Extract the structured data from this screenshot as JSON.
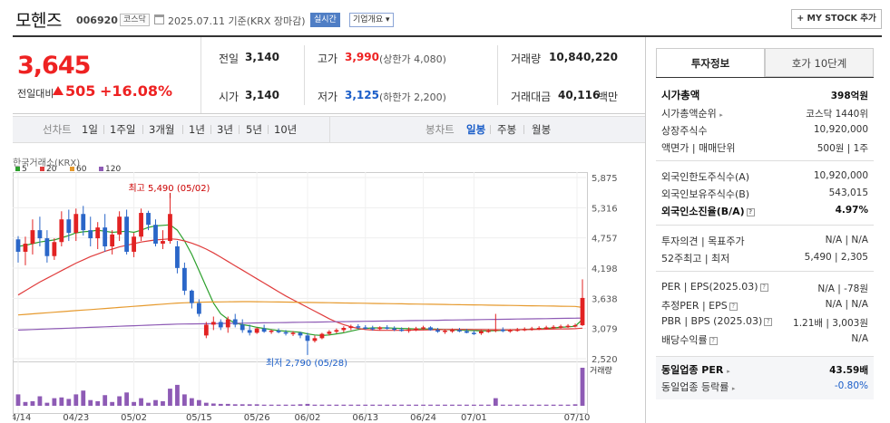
{
  "header": {
    "stock_name": "모헨즈",
    "stock_code": "006920",
    "market_tag": "코스닥",
    "as_of": "2025.07.11  기준(KRX 장마감)",
    "realtime_label": "실시간",
    "overview_label": "기업개요 ▾",
    "mystock_label": "+ MY STOCK 추가"
  },
  "price": {
    "current": "3,645",
    "change_label": "전일대비",
    "change_value": "505",
    "change_pct": "+16.08%"
  },
  "summary": {
    "prev_close_label": "전일",
    "prev_close": "3,140",
    "open_label": "시가",
    "open": "3,140",
    "high_label": "고가",
    "high": "3,990",
    "upper_limit": "(상한가 4,080)",
    "low_label": "저가",
    "low": "3,125",
    "lower_limit": "(하한가 2,200)",
    "volume_label": "거래량",
    "volume": "10,840,220",
    "amount_label": "거래대금",
    "amount": "40,116",
    "amount_unit": "백만"
  },
  "periods": {
    "line_label": "선차트",
    "line_items": [
      "1일",
      "1주일",
      "3개월",
      "1년",
      "3년",
      "5년",
      "10년"
    ],
    "candle_label": "봉차트",
    "candle_items": [
      "일봉",
      "주봉",
      "월봉"
    ],
    "active_candle": "일봉"
  },
  "chart_data": {
    "type": "candlestick",
    "source_label": "한국거래소(KRX)",
    "ma_legend": [
      {
        "name": "5",
        "color": "#2ca02c"
      },
      {
        "name": "20",
        "color": "#e03c3c"
      },
      {
        "name": "60",
        "color": "#e69a2e"
      },
      {
        "name": "120",
        "color": "#8e5bb5"
      }
    ],
    "y_ticks": [
      "5,875",
      "5,316",
      "4,757",
      "4,198",
      "3,638",
      "3,079",
      "2,520"
    ],
    "y_tick_values": [
      5875,
      5316,
      4757,
      4198,
      3638,
      3079,
      2520
    ],
    "ylim": [
      2520,
      5875
    ],
    "x_ticks": [
      "04/14",
      "04/23",
      "05/02",
      "05/15",
      "05/26",
      "06/02",
      "06/13",
      "06/24",
      "07/01",
      "07/10"
    ],
    "high_annotation": "최고 5,490 (05/02)",
    "low_annotation": "최저 2,790 (05/28)",
    "volume_label": "거래량",
    "up_color": "#e22222",
    "down_color": "#2a66c8",
    "candles": [
      [
        4730,
        4790,
        4300,
        4500
      ],
      [
        4500,
        4780,
        4250,
        4650
      ],
      [
        4650,
        5100,
        4450,
        4900
      ],
      [
        4900,
        5150,
        4600,
        4750
      ],
      [
        4750,
        4900,
        4300,
        4420
      ],
      [
        4420,
        4750,
        4350,
        4680
      ],
      [
        4680,
        5250,
        4600,
        5100
      ],
      [
        5100,
        5280,
        4700,
        4850
      ],
      [
        4850,
        5300,
        4700,
        5200
      ],
      [
        5200,
        5350,
        4800,
        4900
      ],
      [
        4900,
        5150,
        4600,
        4750
      ],
      [
        4750,
        5050,
        4550,
        4950
      ],
      [
        4950,
        5200,
        4500,
        4600
      ],
      [
        4600,
        4900,
        4450,
        4820
      ],
      [
        4820,
        5250,
        4700,
        5150
      ],
      [
        5150,
        5280,
        4450,
        4500
      ],
      [
        4500,
        4850,
        4400,
        4780
      ],
      [
        4780,
        5300,
        4700,
        5220
      ],
      [
        5220,
        5260,
        4900,
        5000
      ],
      [
        5000,
        5100,
        4600,
        4650
      ],
      [
        4650,
        4900,
        4550,
        4700
      ],
      [
        4700,
        5490,
        4650,
        5200
      ],
      [
        4600,
        4700,
        4100,
        4200
      ],
      [
        4200,
        4300,
        3700,
        3780
      ],
      [
        3780,
        3800,
        3450,
        3550
      ],
      [
        3550,
        3620,
        3300,
        3350
      ],
      [
        2950,
        3200,
        2900,
        3150
      ],
      [
        3150,
        3300,
        3050,
        3200
      ],
      [
        3200,
        3250,
        3050,
        3100
      ],
      [
        3100,
        3300,
        3000,
        3250
      ],
      [
        3250,
        3350,
        3100,
        3150
      ],
      [
        3150,
        3250,
        3000,
        3050
      ],
      [
        3050,
        3150,
        2950,
        3000
      ],
      [
        3000,
        3100,
        2980,
        3080
      ],
      [
        3080,
        3150,
        3000,
        3020
      ],
      [
        3020,
        3060,
        2980,
        3040
      ],
      [
        3040,
        3080,
        2990,
        3010
      ],
      [
        3010,
        3050,
        2950,
        2990
      ],
      [
        2990,
        3030,
        2940,
        3000
      ],
      [
        3000,
        3020,
        2900,
        2950
      ],
      [
        2950,
        3000,
        2790,
        2850
      ],
      [
        2850,
        2950,
        2820,
        2900
      ],
      [
        2900,
        3000,
        2880,
        2980
      ],
      [
        2980,
        3050,
        2950,
        3020
      ],
      [
        3020,
        3080,
        2990,
        3050
      ],
      [
        3050,
        3120,
        3010,
        3090
      ],
      [
        3090,
        3150,
        3050,
        3120
      ],
      [
        3120,
        3160,
        3070,
        3100
      ],
      [
        3100,
        3140,
        3060,
        3090
      ],
      [
        3090,
        3130,
        3040,
        3070
      ],
      [
        3070,
        3120,
        3040,
        3100
      ],
      [
        3100,
        3140,
        3060,
        3080
      ],
      [
        3080,
        3120,
        3030,
        3060
      ],
      [
        3060,
        3100,
        3020,
        3050
      ],
      [
        3050,
        3100,
        3000,
        3060
      ],
      [
        3060,
        3110,
        3030,
        3080
      ],
      [
        3080,
        3130,
        3050,
        3100
      ],
      [
        3100,
        3120,
        3040,
        3050
      ],
      [
        3050,
        3090,
        3000,
        3020
      ],
      [
        3020,
        3060,
        2980,
        3040
      ],
      [
        3040,
        3080,
        3000,
        3050
      ],
      [
        3050,
        3090,
        3010,
        3030
      ],
      [
        3030,
        3070,
        2990,
        3000
      ],
      [
        3000,
        3040,
        2960,
        2990
      ],
      [
        2990,
        3050,
        2960,
        3030
      ],
      [
        3030,
        3070,
        3000,
        3040
      ],
      [
        3040,
        3350,
        3010,
        3060
      ],
      [
        3060,
        3100,
        3010,
        3030
      ],
      [
        3030,
        3070,
        3000,
        3050
      ],
      [
        3050,
        3090,
        3020,
        3060
      ],
      [
        3060,
        3100,
        3030,
        3070
      ],
      [
        3070,
        3110,
        3040,
        3080
      ],
      [
        3080,
        3120,
        3050,
        3090
      ],
      [
        3090,
        3130,
        3060,
        3100
      ],
      [
        3100,
        3140,
        3070,
        3110
      ],
      [
        3110,
        3150,
        3080,
        3120
      ],
      [
        3120,
        3160,
        3090,
        3130
      ],
      [
        3130,
        3170,
        3100,
        3140
      ],
      [
        3140,
        3990,
        3125,
        3645
      ]
    ],
    "ma5": [
      4600,
      4620,
      4650,
      4680,
      4700,
      4720,
      4760,
      4800,
      4850,
      4870,
      4880,
      4900,
      4880,
      4860,
      4870,
      4880,
      4860,
      4900,
      4950,
      4980,
      4990,
      5000,
      4900,
      4700,
      4450,
      4150,
      3850,
      3550,
      3350,
      3250,
      3180,
      3150,
      3130,
      3100,
      3080,
      3060,
      3040,
      3030,
      3020,
      3010,
      2980,
      2960,
      2950,
      2960,
      2980,
      3000,
      3030,
      3060,
      3080,
      3090,
      3090,
      3090,
      3085,
      3080,
      3075,
      3070,
      3070,
      3070,
      3065,
      3060,
      3055,
      3050,
      3045,
      3040,
      3035,
      3035,
      3040,
      3045,
      3050,
      3055,
      3060,
      3065,
      3070,
      3080,
      3090,
      3100,
      3110,
      3120,
      3250
    ],
    "ma20": [
      3700,
      3780,
      3860,
      3940,
      4010,
      4080,
      4150,
      4220,
      4290,
      4350,
      4410,
      4460,
      4510,
      4550,
      4590,
      4620,
      4650,
      4680,
      4700,
      4720,
      4730,
      4740,
      4730,
      4700,
      4660,
      4610,
      4550,
      4480,
      4400,
      4320,
      4240,
      4160,
      4080,
      4000,
      3920,
      3840,
      3760,
      3680,
      3610,
      3540,
      3470,
      3400,
      3330,
      3260,
      3200,
      3150,
      3110,
      3080,
      3060,
      3050,
      3045,
      3045,
      3045,
      3045,
      3048,
      3050,
      3052,
      3055,
      3058,
      3060,
      3062,
      3062,
      3062,
      3060,
      3058,
      3056,
      3055,
      3055,
      3055,
      3056,
      3058,
      3060,
      3062,
      3065,
      3068,
      3070,
      3072,
      3075,
      3085
    ],
    "ma60": [
      3330,
      3340,
      3350,
      3360,
      3370,
      3380,
      3390,
      3400,
      3410,
      3420,
      3430,
      3440,
      3450,
      3460,
      3470,
      3480,
      3490,
      3500,
      3510,
      3520,
      3530,
      3540,
      3550,
      3555,
      3560,
      3565,
      3568,
      3570,
      3572,
      3574,
      3575,
      3576,
      3576,
      3575,
      3574,
      3572,
      3570,
      3568,
      3566,
      3564,
      3562,
      3560,
      3558,
      3556,
      3554,
      3552,
      3550,
      3548,
      3546,
      3544,
      3542,
      3540,
      3538,
      3536,
      3534,
      3532,
      3530,
      3528,
      3526,
      3524,
      3522,
      3520,
      3518,
      3516,
      3514,
      3512,
      3510,
      3508,
      3506,
      3504,
      3502,
      3500,
      3498,
      3496,
      3494,
      3492,
      3490,
      3488,
      3470
    ],
    "ma120": [
      3050,
      3055,
      3060,
      3065,
      3070,
      3075,
      3080,
      3085,
      3090,
      3095,
      3100,
      3105,
      3110,
      3115,
      3120,
      3125,
      3130,
      3135,
      3140,
      3145,
      3150,
      3155,
      3160,
      3162,
      3164,
      3166,
      3168,
      3170,
      3172,
      3174,
      3176,
      3178,
      3180,
      3182,
      3184,
      3186,
      3188,
      3190,
      3192,
      3194,
      3196,
      3198,
      3200,
      3202,
      3204,
      3206,
      3208,
      3210,
      3212,
      3214,
      3216,
      3218,
      3220,
      3222,
      3224,
      3226,
      3228,
      3230,
      3232,
      3234,
      3236,
      3238,
      3240,
      3242,
      3244,
      3246,
      3248,
      3250,
      3252,
      3254,
      3256,
      3258,
      3260,
      3262,
      3264,
      3266,
      3268,
      3270,
      3272
    ],
    "volume": [
      0.3,
      0.1,
      0.12,
      0.25,
      0.08,
      0.2,
      0.22,
      0.18,
      0.3,
      0.4,
      0.15,
      0.12,
      0.28,
      0.1,
      0.25,
      0.35,
      0.1,
      0.2,
      0.08,
      0.15,
      0.12,
      0.45,
      0.55,
      0.3,
      0.2,
      0.15,
      0.08,
      0.06,
      0.05,
      0.05,
      0.04,
      0.04,
      0.04,
      0.04,
      0.03,
      0.03,
      0.03,
      0.03,
      0.03,
      0.04,
      0.05,
      0.03,
      0.03,
      0.03,
      0.03,
      0.03,
      0.03,
      0.03,
      0.03,
      0.03,
      0.03,
      0.03,
      0.03,
      0.03,
      0.03,
      0.03,
      0.03,
      0.03,
      0.03,
      0.03,
      0.03,
      0.03,
      0.03,
      0.03,
      0.03,
      0.03,
      0.2,
      0.03,
      0.03,
      0.03,
      0.03,
      0.03,
      0.03,
      0.03,
      0.03,
      0.03,
      0.03,
      0.04,
      1.0
    ]
  },
  "info_panel": {
    "tab_info": "투자정보",
    "tab_orderbook": "호가 10단계",
    "market_cap_label": "시가총액",
    "market_cap": "398억원",
    "market_cap_rank_label": "시가총액순위",
    "market_cap_rank": "코스닥 1440위",
    "shares_label": "상장주식수",
    "shares": "10,920,000",
    "par_label": "액면가 | 매매단위",
    "par": "500원 | 1주",
    "foreign_limit_label": "외국인한도주식수(A)",
    "foreign_limit": "10,920,000",
    "foreign_hold_label": "외국인보유주식수(B)",
    "foreign_hold": "543,015",
    "foreign_ratio_label": "외국인소진율(B/A)",
    "foreign_ratio": "4.97%",
    "opinion_label": "투자의견 | 목표주가",
    "opinion": "N/A | N/A",
    "week52_label": "52주최고 | 최저",
    "week52": "5,490 | 2,305",
    "per_label": "PER | EPS(2025.03)",
    "per": "N/A | -78원",
    "est_per_label": "추정PER | EPS",
    "est_per": "N/A | N/A",
    "pbr_label": "PBR | BPS (2025.03)",
    "pbr": "1.21배 | 3,003원",
    "div_label": "배당수익률",
    "div": "N/A",
    "sector_per_label": "동일업종 PER",
    "sector_per": "43.59배",
    "sector_rate_label": "동일업종 등락률",
    "sector_rate": "-0.80%"
  }
}
